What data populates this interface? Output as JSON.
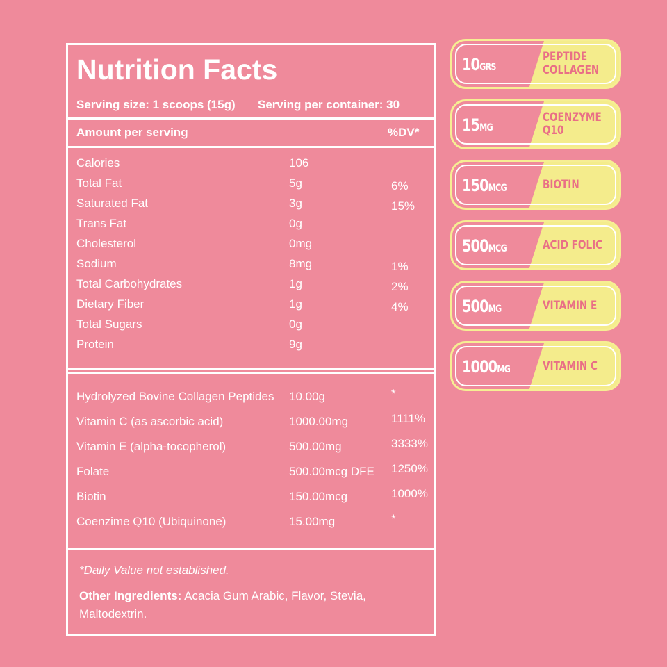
{
  "panel": {
    "title": "Nutrition Facts",
    "serving_size": "Serving size: 1 scoops (15g)",
    "servings": "Serving per container: 30",
    "header": {
      "label": "Amount per serving",
      "dv": "%DV*"
    },
    "nutrients": [
      {
        "name": "Calories",
        "amount": "106"
      },
      {
        "name": "Total Fat",
        "amount": "5g",
        "dv": "6%"
      },
      {
        "name": "Saturated Fat",
        "amount": "3g",
        "dv": "15%"
      },
      {
        "name": "Trans Fat",
        "amount": "0g"
      },
      {
        "name": "Cholesterol",
        "amount": "0mg"
      },
      {
        "name": "Sodium",
        "amount": "8mg",
        "dv": "1%"
      },
      {
        "name": "Total Carbohydrates",
        "amount": "1g",
        "dv": "2%"
      },
      {
        "name": "Dietary Fiber",
        "amount": "1g",
        "dv": "4%"
      },
      {
        "name": "Total Sugars",
        "amount": "0g"
      },
      {
        "name": "Protein",
        "amount": "9g"
      }
    ],
    "supplements": [
      {
        "name": "Hydrolyzed Bovine Collagen Peptides",
        "amount": "10.00g",
        "dv": "*"
      },
      {
        "name": "Vitamin C (as ascorbic acid)",
        "amount": "1000.00mg",
        "dv": "1111%"
      },
      {
        "name": "Vitamin E (alpha-tocopherol)",
        "amount": "500.00mg",
        "dv": "3333%"
      },
      {
        "name": "Folate",
        "amount": "500.00mcg DFE",
        "dv": "1250%"
      },
      {
        "name": "Biotin",
        "amount": "150.00mcg",
        "dv": "1000%"
      },
      {
        "name": "Coenzime Q10 (Ubiquinone)",
        "amount": "15.00mg",
        "dv": "*"
      }
    ],
    "footnote": "*Daily Value not established.",
    "ingredients_label": "Other Ingredients:",
    "ingredients_text": "Acacia Gum Arabic, Flavor, Stevia, Maltodextrin."
  },
  "badges": [
    {
      "amount": "10",
      "unit": "GRS",
      "name": "PEPTIDE COLLAGEN"
    },
    {
      "amount": "15",
      "unit": "MG",
      "name": "COENZYME Q10"
    },
    {
      "amount": "150",
      "unit": "MCG",
      "name": "BIOTIN"
    },
    {
      "amount": "500",
      "unit": "MCG",
      "name": "ACID FOLIC"
    },
    {
      "amount": "500",
      "unit": "MG",
      "name": "VITAMIN E"
    },
    {
      "amount": "1000",
      "unit": "MG",
      "name": "VITAMIN C"
    }
  ]
}
